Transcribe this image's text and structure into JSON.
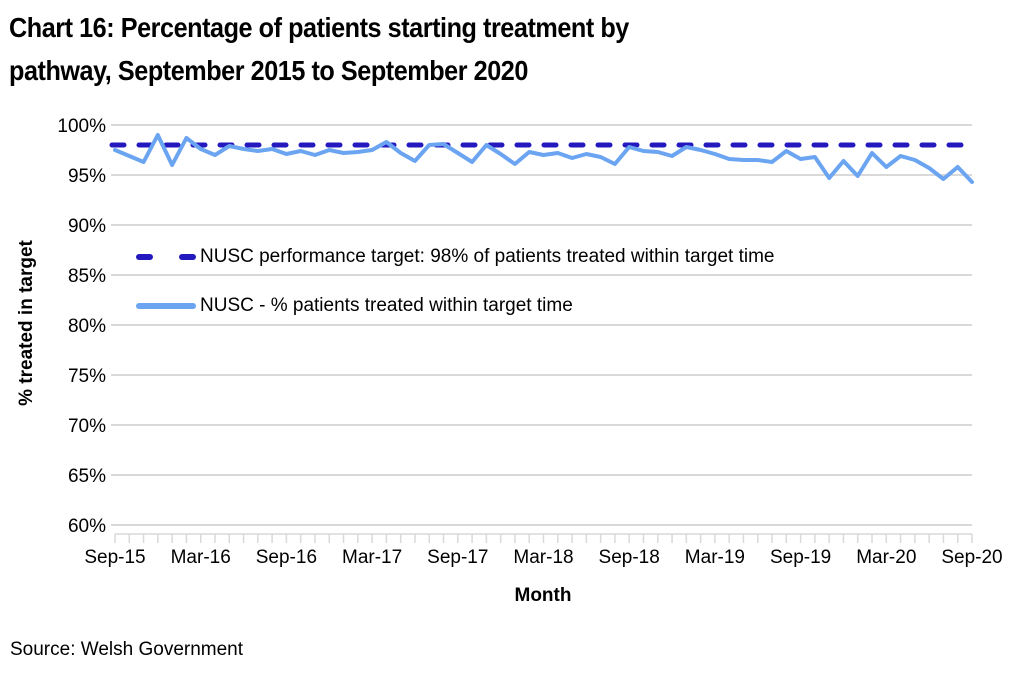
{
  "header": {
    "title_line1": "Chart 16: Percentage of patients starting treatment by",
    "title_line2": "pathway, September 2015 to September 2020"
  },
  "footer": {
    "source": "Source: Welsh Government"
  },
  "legend": {
    "items": [
      {
        "label": "NUSC performance target: 98% of patients treated within target time",
        "style": "dashed"
      },
      {
        "label": "NUSC - % patients treated within target time",
        "style": "solid"
      }
    ]
  },
  "colors": {
    "target_line": "#2319BE",
    "series_line": "#6BA5F1",
    "gridline": "#D9D9D9",
    "text": "#000000"
  },
  "chart_data": {
    "type": "line",
    "title": "Chart 16: Percentage of patients starting treatment by pathway, September 2015 to September 2020",
    "xlabel": "Month",
    "ylabel": "% treated in target",
    "ylim": [
      60,
      100
    ],
    "yticks": [
      60,
      65,
      70,
      75,
      80,
      85,
      90,
      95,
      100
    ],
    "y_tick_labels": [
      "60%",
      "65%",
      "70%",
      "75%",
      "80%",
      "85%",
      "90%",
      "95%",
      "100%"
    ],
    "x_tick_labels": [
      "Sep-15",
      "Mar-16",
      "Sep-16",
      "Mar-17",
      "Sep-17",
      "Mar-18",
      "Sep-18",
      "Mar-19",
      "Sep-19",
      "Mar-20",
      "Sep-20"
    ],
    "x_tick_every": 6,
    "grid": "horizontal",
    "legend_position": "inside-upper-left",
    "categories": [
      "Sep-15",
      "Oct-15",
      "Nov-15",
      "Dec-15",
      "Jan-16",
      "Feb-16",
      "Mar-16",
      "Apr-16",
      "May-16",
      "Jun-16",
      "Jul-16",
      "Aug-16",
      "Sep-16",
      "Oct-16",
      "Nov-16",
      "Dec-16",
      "Jan-17",
      "Feb-17",
      "Mar-17",
      "Apr-17",
      "May-17",
      "Jun-17",
      "Jul-17",
      "Aug-17",
      "Sep-17",
      "Oct-17",
      "Nov-17",
      "Dec-17",
      "Jan-18",
      "Feb-18",
      "Mar-18",
      "Apr-18",
      "May-18",
      "Jun-18",
      "Jul-18",
      "Aug-18",
      "Sep-18",
      "Oct-18",
      "Nov-18",
      "Dec-18",
      "Jan-19",
      "Feb-19",
      "Mar-19",
      "Apr-19",
      "May-19",
      "Jun-19",
      "Jul-19",
      "Aug-19",
      "Sep-19",
      "Oct-19",
      "Nov-19",
      "Dec-19",
      "Jan-20",
      "Feb-20",
      "Mar-20",
      "Apr-20",
      "May-20",
      "Jun-20",
      "Jul-20",
      "Aug-20",
      "Sep-20"
    ],
    "series": [
      {
        "name": "NUSC - % patients treated within target time",
        "values": [
          97.5,
          96.9,
          96.3,
          99.0,
          96.0,
          98.7,
          97.6,
          97.0,
          97.9,
          97.6,
          97.4,
          97.6,
          97.1,
          97.4,
          97.0,
          97.5,
          97.2,
          97.3,
          97.5,
          98.3,
          97.2,
          96.4,
          98.0,
          98.1,
          97.2,
          96.3,
          98.0,
          97.1,
          96.1,
          97.3,
          97.0,
          97.2,
          96.7,
          97.1,
          96.8,
          96.1,
          97.8,
          97.4,
          97.3,
          96.9,
          97.8,
          97.5,
          97.1,
          96.6,
          96.5,
          96.5,
          96.3,
          97.4,
          96.6,
          96.8,
          94.7,
          96.4,
          94.9,
          97.2,
          95.8,
          96.9,
          96.5,
          95.7,
          94.6,
          95.8,
          94.3
        ]
      }
    ],
    "target_line": {
      "label": "NUSC performance target: 98% of patients treated within target time",
      "value": 98
    }
  }
}
